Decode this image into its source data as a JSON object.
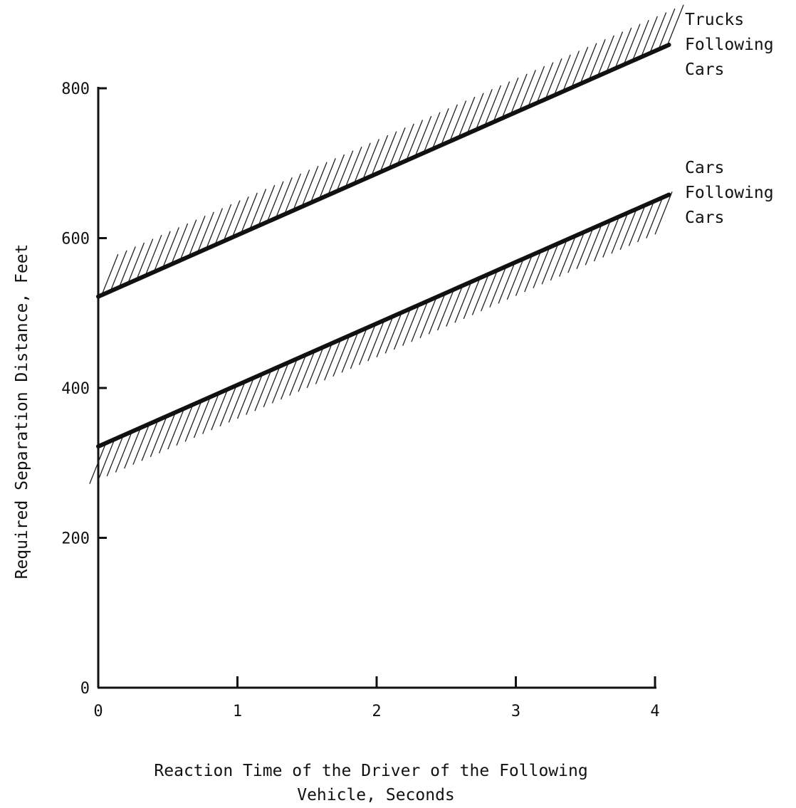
{
  "chart_data": {
    "type": "line",
    "title": "",
    "xlabel": [
      "Reaction Time of the Driver of the Following",
      "Vehicle, Seconds"
    ],
    "ylabel": "Required Separation Distance, Feet",
    "xlim": [
      0,
      4.1
    ],
    "ylim": [
      0,
      800
    ],
    "xticks": [
      0,
      1,
      2,
      3,
      4
    ],
    "yticks": [
      0,
      200,
      400,
      600,
      800
    ],
    "grid": false,
    "legend": "none",
    "series": [
      {
        "name": [
          "Trucks",
          "Following",
          "Cars"
        ],
        "hatch_side": "above",
        "color": "#111111",
        "x": [
          0,
          1,
          2,
          3,
          4.1
        ],
        "y": [
          522,
          604,
          686,
          768,
          858
        ]
      },
      {
        "name": [
          "Cars",
          "Following",
          "Cars"
        ],
        "hatch_side": "below",
        "color": "#111111",
        "x": [
          0,
          1,
          2,
          3,
          4.1
        ],
        "y": [
          322,
          404,
          486,
          568,
          658
        ]
      }
    ]
  }
}
